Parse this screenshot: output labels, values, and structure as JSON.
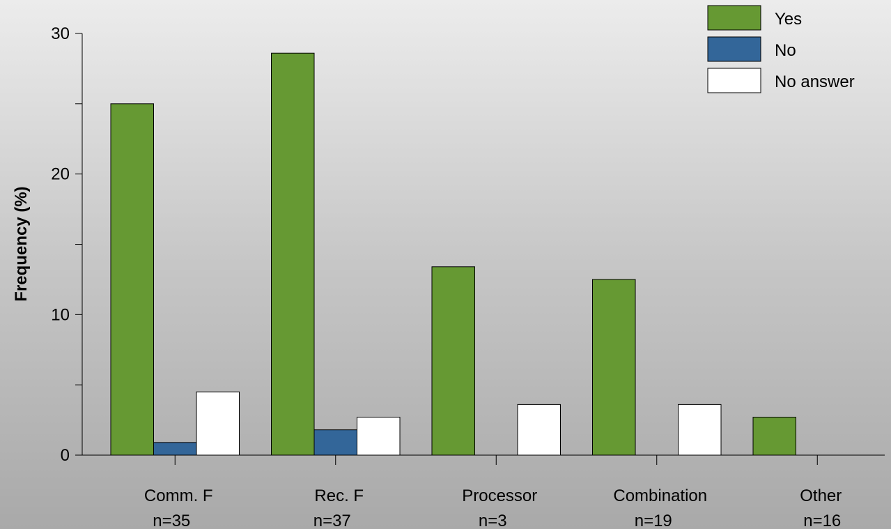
{
  "chart_data": {
    "type": "bar",
    "ylabel": "Frequency (%)",
    "ylim": [
      0,
      30
    ],
    "yticks": [
      0,
      10,
      20,
      30
    ],
    "categories": [
      "Comm. F",
      "Rec. F",
      "Processor",
      "Combination",
      "Other"
    ],
    "sample_sizes": [
      "n=35",
      "n=37",
      "n=3",
      "n=19",
      "n=16"
    ],
    "series": [
      {
        "name": "Yes",
        "color": "#669933",
        "values": [
          25.0,
          28.6,
          13.4,
          12.5,
          2.7
        ]
      },
      {
        "name": "No",
        "color": "#336699",
        "values": [
          0.9,
          1.8,
          0,
          0,
          0
        ]
      },
      {
        "name": "No answer",
        "color": "#ffffff",
        "values": [
          4.5,
          2.7,
          3.6,
          3.6,
          0
        ]
      }
    ],
    "legend_position": "top-right",
    "grid": false
  }
}
